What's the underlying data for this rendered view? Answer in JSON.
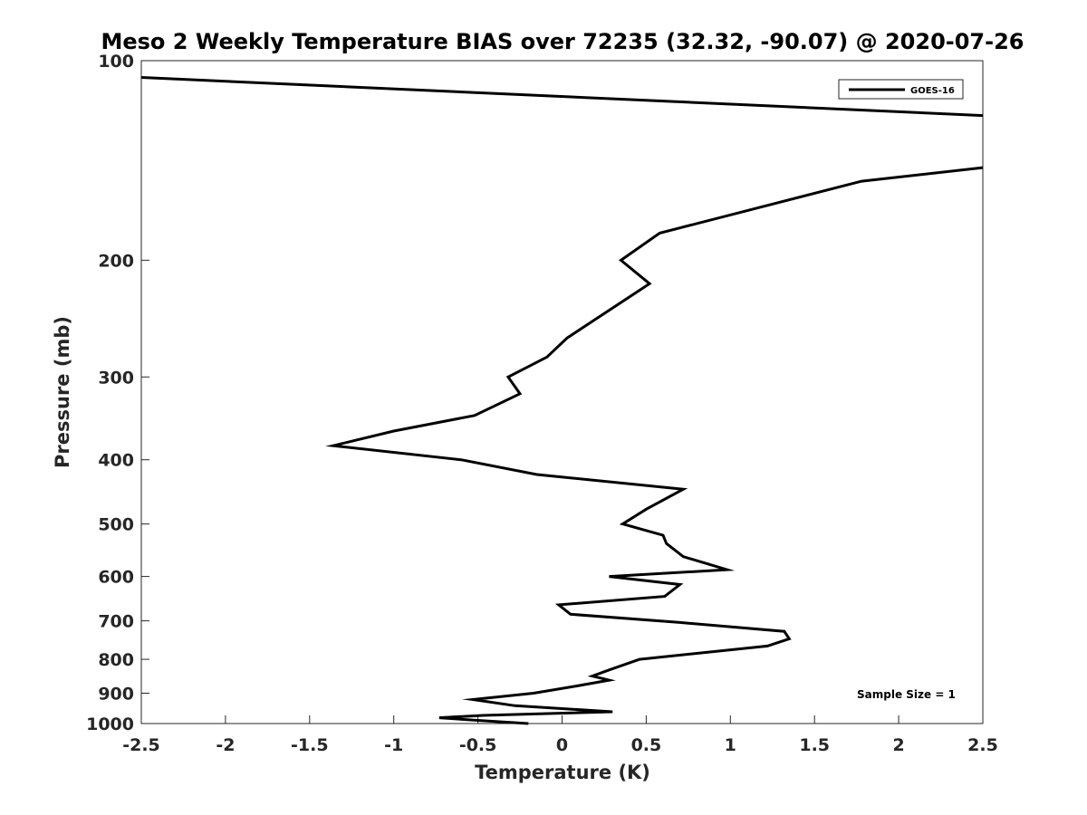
{
  "chart_data": {
    "type": "line",
    "title": "Meso 2 Weekly Temperature BIAS over 72235 (32.32, -90.07) @ 2020-07-26",
    "xlabel": "Temperature (K)",
    "ylabel": "Pressure (mb)",
    "xlim": [
      -2.5,
      2.5
    ],
    "ylim": [
      100,
      1000
    ],
    "y_scale": "log",
    "y_reversed": true,
    "grid": false,
    "legend_position": "top-right",
    "x_ticks": [
      -2.5,
      -2,
      -1.5,
      -1,
      -0.5,
      0,
      0.5,
      1,
      1.5,
      2,
      2.5
    ],
    "x_tick_labels": [
      "-2.5",
      "-2",
      "-1.5",
      "-1",
      "-0.5",
      "0",
      "0.5",
      "1",
      "1.5",
      "2",
      "2.5"
    ],
    "y_ticks": [
      100,
      200,
      300,
      400,
      500,
      600,
      700,
      800,
      900,
      1000
    ],
    "y_tick_labels": [
      "100",
      "200",
      "300",
      "400",
      "500",
      "600",
      "700",
      "800",
      "900",
      "1000"
    ],
    "annotation": "Sample Size = 1",
    "series": [
      {
        "name": "GOES-16",
        "color": "#000000",
        "points": [
          {
            "x": -2.5,
            "y": 106
          },
          {
            "x": 2.5,
            "y": 121
          },
          {
            "x": null,
            "y": null
          },
          {
            "x": 2.5,
            "y": 145
          },
          {
            "x": 1.78,
            "y": 152
          },
          {
            "x": 0.58,
            "y": 182
          },
          {
            "x": 0.35,
            "y": 200
          },
          {
            "x": 0.52,
            "y": 217
          },
          {
            "x": 0.03,
            "y": 262
          },
          {
            "x": -0.09,
            "y": 280
          },
          {
            "x": -0.32,
            "y": 300
          },
          {
            "x": -0.25,
            "y": 318
          },
          {
            "x": -0.52,
            "y": 343
          },
          {
            "x": -1.0,
            "y": 362
          },
          {
            "x": -1.36,
            "y": 381
          },
          {
            "x": -0.6,
            "y": 400
          },
          {
            "x": -0.15,
            "y": 421
          },
          {
            "x": 0.72,
            "y": 443
          },
          {
            "x": 0.5,
            "y": 475
          },
          {
            "x": 0.36,
            "y": 500
          },
          {
            "x": 0.6,
            "y": 520
          },
          {
            "x": 0.62,
            "y": 535
          },
          {
            "x": 0.72,
            "y": 560
          },
          {
            "x": 0.98,
            "y": 586
          },
          {
            "x": 0.28,
            "y": 600
          },
          {
            "x": 0.7,
            "y": 617
          },
          {
            "x": 0.61,
            "y": 643
          },
          {
            "x": -0.02,
            "y": 662
          },
          {
            "x": 0.05,
            "y": 684
          },
          {
            "x": 0.7,
            "y": 704
          },
          {
            "x": 1.32,
            "y": 726
          },
          {
            "x": 1.35,
            "y": 745
          },
          {
            "x": 1.22,
            "y": 764
          },
          {
            "x": 0.46,
            "y": 800
          },
          {
            "x": 0.28,
            "y": 830
          },
          {
            "x": 0.18,
            "y": 848
          },
          {
            "x": 0.28,
            "y": 860
          },
          {
            "x": 0.06,
            "y": 880
          },
          {
            "x": -0.17,
            "y": 900
          },
          {
            "x": -0.53,
            "y": 920
          },
          {
            "x": -0.28,
            "y": 940
          },
          {
            "x": 0.3,
            "y": 960
          },
          {
            "x": -0.47,
            "y": 972
          },
          {
            "x": -0.73,
            "y": 980
          },
          {
            "x": -0.48,
            "y": 990
          },
          {
            "x": -0.2,
            "y": 1000
          }
        ]
      }
    ]
  }
}
